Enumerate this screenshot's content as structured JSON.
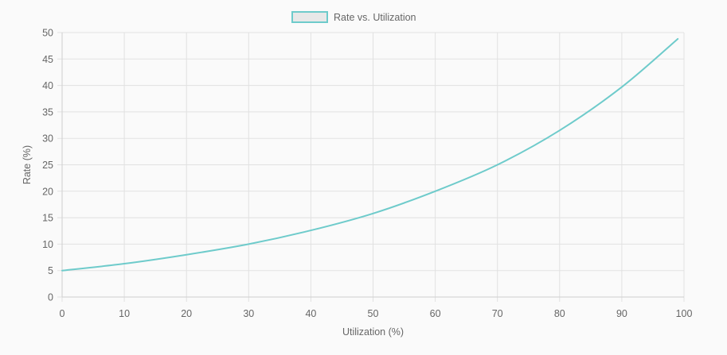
{
  "chart_data": {
    "type": "line",
    "title": "",
    "xlabel": "Utilization (%)",
    "ylabel": "Rate (%)",
    "xlim": [
      0,
      100
    ],
    "ylim": [
      0,
      50
    ],
    "x_ticks": [
      0,
      10,
      20,
      30,
      40,
      50,
      60,
      70,
      80,
      90,
      100
    ],
    "y_ticks": [
      0,
      5,
      10,
      15,
      20,
      25,
      30,
      35,
      40,
      45,
      50
    ],
    "grid": true,
    "legend_position": "top",
    "series": [
      {
        "name": "Rate vs. Utilization",
        "color": "#6ecbcb",
        "fill_color": "#e8e8e8",
        "x": [
          0,
          10,
          20,
          30,
          40,
          50,
          60,
          70,
          80,
          90,
          99
        ],
        "y": [
          5.0,
          6.3,
          8.0,
          10.0,
          12.6,
          15.8,
          20.0,
          25.0,
          31.5,
          39.7,
          48.8
        ]
      }
    ]
  }
}
